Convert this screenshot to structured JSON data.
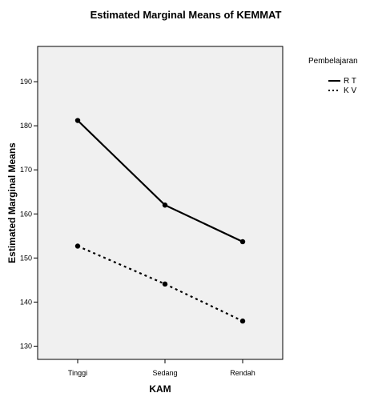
{
  "chart_data": {
    "type": "line",
    "title": "Estimated Marginal Means of KEMMAT",
    "xlabel": "KAM",
    "ylabel": "Estimated Marginal Means",
    "categories": [
      "Tinggi",
      "Sedang",
      "Rendah"
    ],
    "ylim": [
      127,
      198
    ],
    "yticks": [
      130,
      140,
      150,
      160,
      170,
      180,
      190
    ],
    "grid": false,
    "legend": {
      "title": "Pembelajaran",
      "placement": "right"
    },
    "series": [
      {
        "name": "R T",
        "values": [
          181.2,
          162.0,
          153.7
        ],
        "color": "#000000",
        "style": "solid"
      },
      {
        "name": "K V",
        "values": [
          152.7,
          144.1,
          135.7
        ],
        "color": "#000000",
        "style": "dotted"
      }
    ],
    "background_color": "#f0f0f0"
  }
}
